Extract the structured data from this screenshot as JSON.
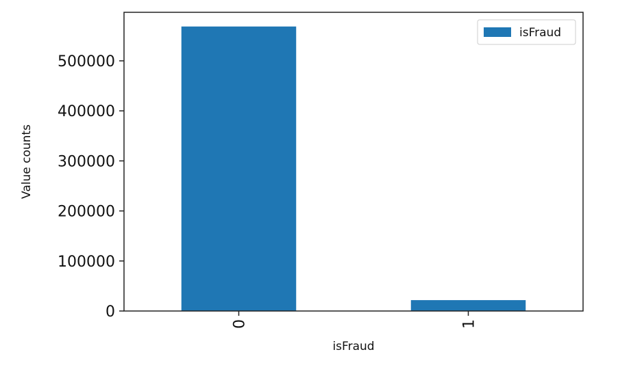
{
  "chart_data": {
    "type": "bar",
    "categories": [
      "0",
      "1"
    ],
    "series": [
      {
        "name": "isFraud",
        "values": [
          568630,
          21738
        ],
        "color": "#1f77b4"
      }
    ],
    "title": "",
    "xlabel": "isFraud",
    "ylabel": "Value counts",
    "ylim": [
      0,
      597000
    ],
    "yticks": [
      0,
      100000,
      200000,
      300000,
      400000,
      500000
    ],
    "ytick_labels": [
      "0",
      "100000",
      "200000",
      "300000",
      "400000",
      "500000"
    ],
    "xtick_rotation": "vertical",
    "grid": false,
    "legend_position": "top-right"
  }
}
